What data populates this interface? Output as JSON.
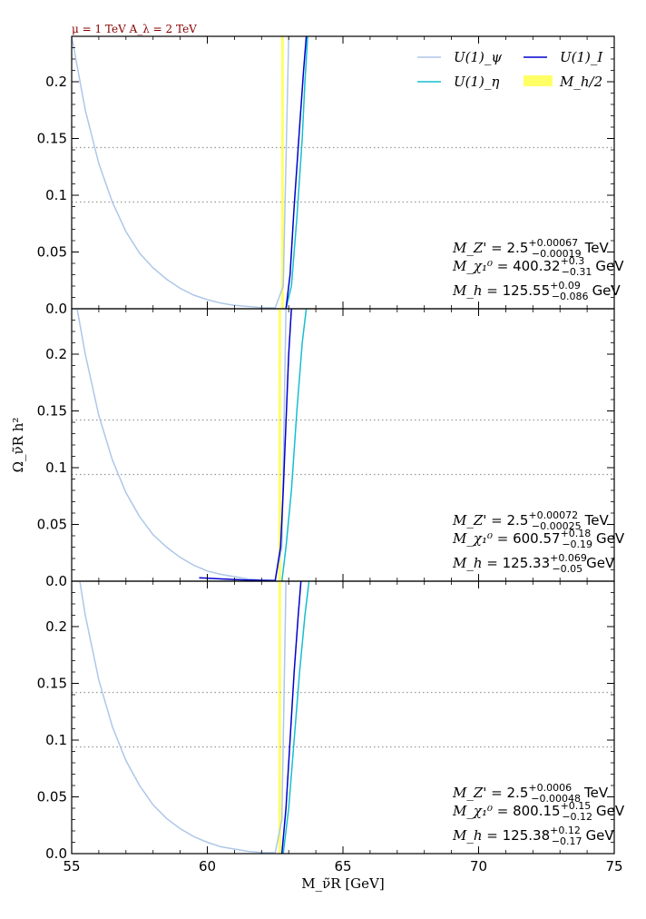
{
  "header_note": "μ = 1 TeV  A_λ = 2 TeV",
  "chart_data": {
    "type": "line",
    "xlabel": "M_ν̃R [GeV]",
    "ylabel": "Ω_ν̃R h²",
    "xlim": [
      55,
      75
    ],
    "ylim": [
      0,
      0.24
    ],
    "xticks": [
      "55",
      "60",
      "65",
      "70",
      "75"
    ],
    "yticks": [
      "0.0",
      "0.05",
      "0.1",
      "0.15",
      "0.2"
    ],
    "hlines": [
      0.094,
      0.142
    ],
    "legend": {
      "placement": "top-right",
      "entries": [
        {
          "label": "U(1)_ψ",
          "color": "#aec7e8"
        },
        {
          "label": "U(1)_η",
          "color": "#17becf"
        },
        {
          "label": "U(1)_I",
          "color": "#0000cd"
        },
        {
          "label": "M_h/2",
          "color": "#ffff66"
        }
      ]
    },
    "panels": [
      {
        "band": [
          62.72,
          62.82
        ],
        "annotations": [
          {
            "lhs": "M_Z' =",
            "val": "2.5",
            "sup": "+0.00067",
            "sub": "−0.00019",
            "unit": "TeV"
          },
          {
            "lhs": "M_χ₁⁰ =",
            "val": "400.32",
            "sup": "+0.3",
            "sub": "−0.31",
            "unit": "GeV"
          },
          {
            "lhs": "M_h  =",
            "val": "125.55",
            "sup": "+0.09",
            "sub": "−0.086",
            "unit": "GeV"
          }
        ],
        "series": [
          {
            "name": "U(1)_ψ",
            "x": [
              55.0,
              55.5,
              56.0,
              56.5,
              57.0,
              57.5,
              58.0,
              58.5,
              59.0,
              59.5,
              60.0,
              60.5,
              61.0,
              61.5,
              62.0,
              62.5,
              62.8,
              63.0
            ],
            "y": [
              0.24,
              0.175,
              0.128,
              0.094,
              0.068,
              0.049,
              0.036,
              0.026,
              0.018,
              0.012,
              0.008,
              0.005,
              0.003,
              0.002,
              0.001,
              0.0008,
              0.02,
              0.24
            ]
          },
          {
            "name": "U(1)_η",
            "x": [
              62.9,
              63.1,
              63.3,
              63.5,
              63.6,
              63.7
            ],
            "y": [
              0.0,
              0.02,
              0.08,
              0.15,
              0.2,
              0.24
            ]
          },
          {
            "name": "U(1)_I",
            "x": [
              62.9,
              63.05,
              63.2,
              63.4,
              63.55,
              63.65
            ],
            "y": [
              0.0,
              0.03,
              0.09,
              0.16,
              0.21,
              0.24
            ]
          }
        ]
      },
      {
        "band": [
          62.62,
          62.72
        ],
        "annotations": [
          {
            "lhs": "M_Z' =",
            "val": "2.5",
            "sup": "+0.00072",
            "sub": "−0.00025",
            "unit": "TeV"
          },
          {
            "lhs": "M_χ₁⁰ =",
            "val": "600.57",
            "sup": "+0.18",
            "sub": "−0.19",
            "unit": "GeV"
          },
          {
            "lhs": "M_h  =",
            "val": "125.33",
            "sup": "+0.069",
            "sub": "−0.05",
            "unit": "GeV"
          }
        ],
        "series": [
          {
            "name": "U(1)_ψ",
            "x": [
              55.2,
              55.5,
              56.0,
              56.5,
              57.0,
              57.5,
              58.0,
              58.5,
              59.0,
              59.5,
              60.0,
              60.5,
              61.0,
              61.5,
              62.0,
              62.5,
              62.75,
              62.9
            ],
            "y": [
              0.24,
              0.2,
              0.146,
              0.107,
              0.078,
              0.057,
              0.041,
              0.03,
              0.021,
              0.014,
              0.009,
              0.006,
              0.004,
              0.002,
              0.001,
              0.0008,
              0.03,
              0.24
            ]
          },
          {
            "name": "U(1)_η",
            "x": [
              62.75,
              62.9,
              63.1,
              63.3,
              63.5,
              63.65
            ],
            "y": [
              0.0,
              0.03,
              0.08,
              0.15,
              0.21,
              0.24
            ]
          },
          {
            "name": "U(1)_I",
            "x": [
              59.7,
              60.5,
              61.5,
              62.5,
              62.7,
              62.8,
              62.9,
              63.0,
              63.1
            ],
            "y": [
              0.003,
              0.002,
              0.001,
              0.0005,
              0.03,
              0.08,
              0.14,
              0.2,
              0.24
            ]
          }
        ]
      },
      {
        "band": [
          62.62,
          62.72
        ],
        "annotations": [
          {
            "lhs": "M_Z' =",
            "val": "2.5",
            "sup": "+0.0006",
            "sub": "−0.00048",
            "unit": "TeV"
          },
          {
            "lhs": "M_χ₁⁰ =",
            "val": "800.15",
            "sup": "+0.15",
            "sub": "−0.12",
            "unit": "GeV"
          },
          {
            "lhs": "M_h  =",
            "val": "125.38",
            "sup": "+0.12",
            "sub": "−0.17",
            "unit": "GeV"
          }
        ],
        "series": [
          {
            "name": "U(1)_ψ",
            "x": [
              55.3,
              55.5,
              56.0,
              56.5,
              57.0,
              57.5,
              58.0,
              58.5,
              59.0,
              59.5,
              60.0,
              60.5,
              61.0,
              61.5,
              62.0,
              62.5,
              62.75,
              62.9
            ],
            "y": [
              0.24,
              0.21,
              0.153,
              0.112,
              0.082,
              0.06,
              0.043,
              0.031,
              0.022,
              0.015,
              0.01,
              0.006,
              0.004,
              0.002,
              0.001,
              0.0008,
              0.03,
              0.24
            ]
          },
          {
            "name": "U(1)_η",
            "x": [
              62.8,
              63.0,
              63.2,
              63.4,
              63.6,
              63.75
            ],
            "y": [
              0.0,
              0.04,
              0.1,
              0.16,
              0.21,
              0.24
            ]
          },
          {
            "name": "U(1)_I",
            "x": [
              62.75,
              62.9,
              63.05,
              63.2,
              63.35,
              63.45
            ],
            "y": [
              0.0,
              0.04,
              0.1,
              0.16,
              0.21,
              0.24
            ]
          }
        ]
      }
    ]
  }
}
